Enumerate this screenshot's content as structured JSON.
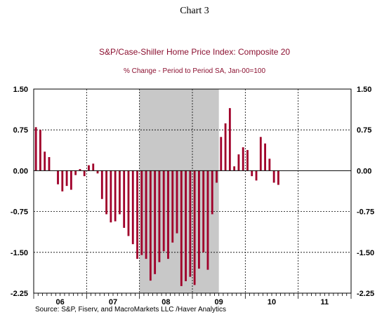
{
  "chart_label": "Chart 3",
  "source": "Source:  S&P, Fiserv, and MacroMarkets LLC /Haver Analytics",
  "chart_data": {
    "type": "bar",
    "title": "S&P/Case-Shiller Home Price Index: Composite 20",
    "subtitle": "% Change - Period to Period    SA, Jan-00=100",
    "x_start": "2006-01",
    "x_end": "2011-12",
    "x_tick_labels": [
      "06",
      "07",
      "08",
      "09",
      "10",
      "11"
    ],
    "y_ticks": [
      1.5,
      0.75,
      0.0,
      -0.75,
      -1.5,
      -2.25
    ],
    "y_tick_labels": [
      "1.50",
      "0.75",
      "0.00",
      "-0.75",
      "-1.50",
      "-2.25"
    ],
    "ylim": [
      -2.25,
      1.5
    ],
    "grid": true,
    "recession_shading": {
      "start": "2008-01",
      "end": "2009-06"
    },
    "colors": {
      "bar": "#A0002A",
      "shade": "#C8C8C8",
      "title": "#8B1030"
    },
    "months": [
      "2006-01",
      "2006-02",
      "2006-03",
      "2006-04",
      "2006-05",
      "2006-06",
      "2006-07",
      "2006-08",
      "2006-09",
      "2006-10",
      "2006-11",
      "2006-12",
      "2007-01",
      "2007-02",
      "2007-03",
      "2007-04",
      "2007-05",
      "2007-06",
      "2007-07",
      "2007-08",
      "2007-09",
      "2007-10",
      "2007-11",
      "2007-12",
      "2008-01",
      "2008-02",
      "2008-03",
      "2008-04",
      "2008-05",
      "2008-06",
      "2008-07",
      "2008-08",
      "2008-09",
      "2008-10",
      "2008-11",
      "2008-12",
      "2009-01",
      "2009-02",
      "2009-03",
      "2009-04",
      "2009-05",
      "2009-06",
      "2009-07",
      "2009-08",
      "2009-09",
      "2009-10",
      "2009-11",
      "2009-12",
      "2010-01",
      "2010-02",
      "2010-03",
      "2010-04",
      "2010-05",
      "2010-06",
      "2010-07",
      "2010-08",
      "2010-09",
      "2010-10"
    ],
    "values": [
      0.8,
      0.75,
      0.35,
      0.25,
      0.0,
      -0.25,
      -0.38,
      -0.28,
      -0.35,
      -0.08,
      0.03,
      -0.1,
      0.1,
      0.13,
      -0.05,
      -0.52,
      -0.8,
      -0.95,
      -0.93,
      -0.8,
      -1.05,
      -1.2,
      -1.35,
      -1.62,
      -1.55,
      -1.62,
      -2.02,
      -1.9,
      -1.68,
      -1.48,
      -1.62,
      -1.32,
      -1.15,
      -2.12,
      -2.03,
      -1.95,
      -2.1,
      -1.8,
      -1.5,
      -1.82,
      -0.8,
      -0.22,
      0.62,
      0.87,
      1.15,
      0.08,
      0.3,
      0.43,
      0.38,
      -0.1,
      -0.18,
      0.62,
      0.5,
      0.22,
      -0.22,
      -0.26,
      0.0,
      0.0
    ]
  }
}
